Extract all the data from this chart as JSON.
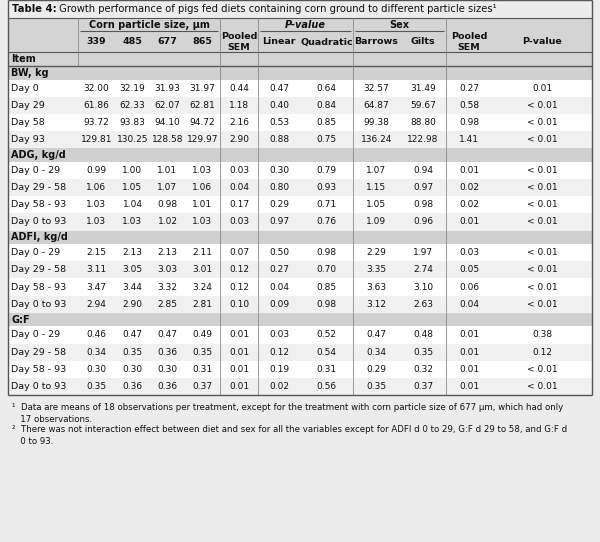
{
  "title_bold": "Table 4:",
  "title_rest": " Growth performance of pigs fed diets containing corn ground to different particle sizes¹",
  "footnote1": "¹  Data are means of 18 observations per treatment, except for the treatment with corn particle size of 677 μm, which had only\n   17 observations.",
  "footnote2": "²  There was not interaction effect between diet and sex for all the variables except for ADFI d 0 to 29, G:F d 29 to 58, and G:F d\n   0 to 93.",
  "section_headers": [
    "BW, kg",
    "ADG, kg/d",
    "ADFI, kg/d",
    "G:F"
  ],
  "rows": [
    [
      "BW, kg",
      null,
      null,
      null,
      null,
      null,
      null,
      null,
      null,
      null,
      null,
      null
    ],
    [
      "Day 0",
      "32.00",
      "32.19",
      "31.93",
      "31.97",
      "0.44",
      "0.47",
      "0.64",
      "32.57",
      "31.49",
      "0.27",
      "0.01"
    ],
    [
      "Day 29",
      "61.86",
      "62.33",
      "62.07",
      "62.81",
      "1.18",
      "0.40",
      "0.84",
      "64.87",
      "59.67",
      "0.58",
      "< 0.01"
    ],
    [
      "Day 58",
      "93.72",
      "93.83",
      "94.10",
      "94.72",
      "2.16",
      "0.53",
      "0.85",
      "99.38",
      "88.80",
      "0.98",
      "< 0.01"
    ],
    [
      "Day 93",
      "129.81",
      "130.25",
      "128.58",
      "129.97",
      "2.90",
      "0.88",
      "0.75",
      "136.24",
      "122.98",
      "1.41",
      "< 0.01"
    ],
    [
      "ADG, kg/d",
      null,
      null,
      null,
      null,
      null,
      null,
      null,
      null,
      null,
      null,
      null
    ],
    [
      "Day 0 - 29",
      "0.99",
      "1.00",
      "1.01",
      "1.03",
      "0.03",
      "0.30",
      "0.79",
      "1.07",
      "0.94",
      "0.01",
      "< 0.01"
    ],
    [
      "Day 29 - 58",
      "1.06",
      "1.05",
      "1.07",
      "1.06",
      "0.04",
      "0.80",
      "0.93",
      "1.15",
      "0.97",
      "0.02",
      "< 0.01"
    ],
    [
      "Day 58 - 93",
      "1.03",
      "1.04",
      "0.98",
      "1.01",
      "0.17",
      "0.29",
      "0.71",
      "1.05",
      "0.98",
      "0.02",
      "< 0.01"
    ],
    [
      "Day 0 to 93",
      "1.03",
      "1.03",
      "1.02",
      "1.03",
      "0.03",
      "0.97",
      "0.76",
      "1.09",
      "0.96",
      "0.01",
      "< 0.01"
    ],
    [
      "ADFI, kg/d",
      null,
      null,
      null,
      null,
      null,
      null,
      null,
      null,
      null,
      null,
      null
    ],
    [
      "Day 0 - 29",
      "2.15",
      "2.13",
      "2.13",
      "2.11",
      "0.07",
      "0.50",
      "0.98",
      "2.29",
      "1.97",
      "0.03",
      "< 0.01"
    ],
    [
      "Day 29 - 58",
      "3.11",
      "3.05",
      "3.03",
      "3.01",
      "0.12",
      "0.27",
      "0.70",
      "3.35",
      "2.74",
      "0.05",
      "< 0.01"
    ],
    [
      "Day 58 - 93",
      "3.47",
      "3.44",
      "3.32",
      "3.24",
      "0.12",
      "0.04",
      "0.85",
      "3.63",
      "3.10",
      "0.06",
      "< 0.01"
    ],
    [
      "Day 0 to 93",
      "2.94",
      "2.90",
      "2.85",
      "2.81",
      "0.10",
      "0.09",
      "0.98",
      "3.12",
      "2.63",
      "0.04",
      "< 0.01"
    ],
    [
      "G:F",
      null,
      null,
      null,
      null,
      null,
      null,
      null,
      null,
      null,
      null,
      null
    ],
    [
      "Day 0 - 29",
      "0.46",
      "0.47",
      "0.47",
      "0.49",
      "0.01",
      "0.03",
      "0.52",
      "0.47",
      "0.48",
      "0.01",
      "0.38"
    ],
    [
      "Day 29 - 58",
      "0.34",
      "0.35",
      "0.36",
      "0.35",
      "0.01",
      "0.12",
      "0.54",
      "0.34",
      "0.35",
      "0.01",
      "0.12"
    ],
    [
      "Day 58 - 93",
      "0.30",
      "0.30",
      "0.30",
      "0.31",
      "0.01",
      "0.19",
      "0.31",
      "0.29",
      "0.32",
      "0.01",
      "< 0.01"
    ],
    [
      "Day 0 to 93",
      "0.35",
      "0.36",
      "0.36",
      "0.37",
      "0.01",
      "0.02",
      "0.56",
      "0.35",
      "0.37",
      "0.01",
      "< 0.01"
    ]
  ],
  "col_labels": [
    "339",
    "485",
    "677",
    "865",
    "Pooled\nSEM",
    "Linear",
    "Quadratic",
    "Barrows",
    "Gilts",
    "Pooled\nSEM",
    "P-value"
  ],
  "bg_color": "#ececec",
  "header_bg": "#d4d4d4",
  "section_bg": "#d0d0d0",
  "white_row": "#ffffff",
  "gray_row": "#f0f0f0",
  "border_color": "#888888",
  "bold_border": "#555555",
  "text_color": "#111111"
}
